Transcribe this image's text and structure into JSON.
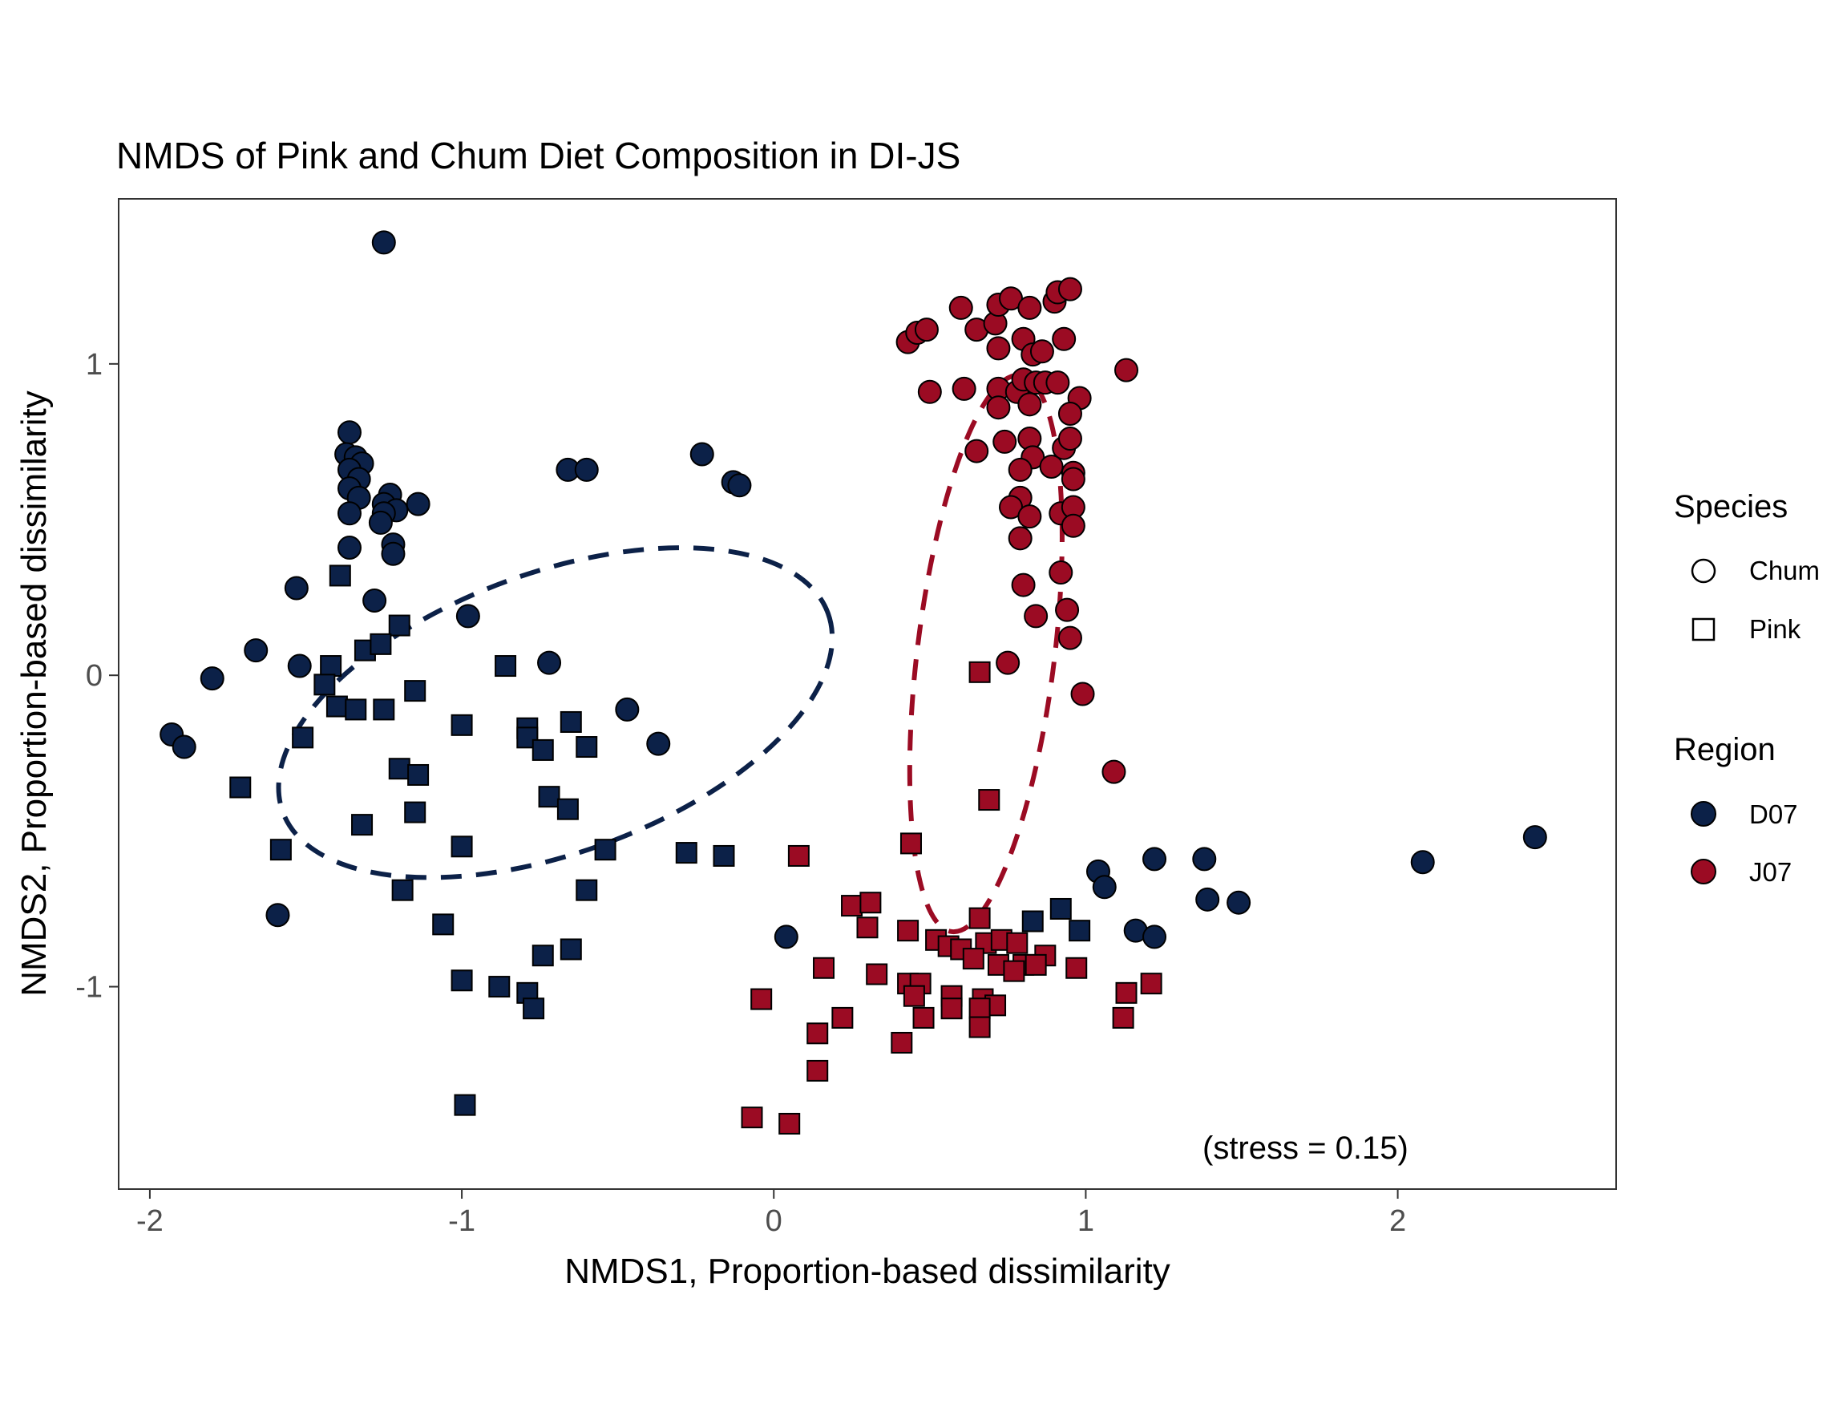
{
  "chart_data": {
    "type": "scatter",
    "title": "NMDS of Pink and Chum Diet Composition in DI-JS",
    "xlabel": "NMDS1, Proportion-based dissimilarity",
    "ylabel": "NMDS2, Proportion-based dissimilarity",
    "xlim": [
      -2.1,
      2.7
    ],
    "ylim": [
      -1.65,
      1.53
    ],
    "x_ticks": [
      -2,
      -1,
      0,
      1,
      2
    ],
    "x_tick_labels": [
      "-2",
      "-1",
      "0",
      "1",
      "2"
    ],
    "y_ticks": [
      -1,
      0,
      1
    ],
    "y_tick_labels": [
      "-1",
      "0",
      "1"
    ],
    "grid": false,
    "annotation": "(stress = 0.15)",
    "legend": {
      "placement": "right",
      "species_title": "Species",
      "species": [
        {
          "label": "Chum",
          "shape": "circle"
        },
        {
          "label": "Pink",
          "shape": "square"
        }
      ],
      "region_title": "Region",
      "regions": [
        {
          "label": "D07",
          "color": "#0c2148"
        },
        {
          "label": "J07",
          "color": "#9b0b23"
        }
      ]
    },
    "ellipses": [
      {
        "group": "D07",
        "color": "#0c2148",
        "center": [
          -0.7,
          -0.12
        ],
        "rx": 0.93,
        "ry": 0.45,
        "rotation_deg": -20
      },
      {
        "group": "J07",
        "color": "#9b0b23",
        "center": [
          0.68,
          0.07
        ],
        "rx": 0.22,
        "ry": 0.9,
        "rotation_deg": 7
      }
    ],
    "series": [
      {
        "species": "Chum",
        "region": "D07",
        "points": [
          [
            -1.25,
            1.39
          ],
          [
            -1.36,
            0.78
          ],
          [
            -1.37,
            0.71
          ],
          [
            -1.34,
            0.7
          ],
          [
            -1.32,
            0.68
          ],
          [
            -1.36,
            0.66
          ],
          [
            -1.33,
            0.63
          ],
          [
            -1.36,
            0.6
          ],
          [
            -1.33,
            0.57
          ],
          [
            -1.23,
            0.58
          ],
          [
            -1.25,
            0.55
          ],
          [
            -1.21,
            0.53
          ],
          [
            -1.25,
            0.52
          ],
          [
            -1.26,
            0.49
          ],
          [
            -1.36,
            0.52
          ],
          [
            -1.14,
            0.55
          ],
          [
            -1.22,
            0.42
          ],
          [
            -1.22,
            0.39
          ],
          [
            -1.36,
            0.41
          ],
          [
            -1.53,
            0.28
          ],
          [
            -1.28,
            0.24
          ],
          [
            -0.98,
            0.19
          ],
          [
            -1.66,
            0.08
          ],
          [
            -1.52,
            0.03
          ],
          [
            -0.72,
            0.04
          ],
          [
            -1.8,
            -0.01
          ],
          [
            -0.47,
            -0.11
          ],
          [
            -0.37,
            -0.22
          ],
          [
            -1.93,
            -0.19
          ],
          [
            -1.89,
            -0.23
          ],
          [
            -1.59,
            -0.77
          ],
          [
            -0.66,
            0.66
          ],
          [
            -0.6,
            0.66
          ],
          [
            -0.23,
            0.71
          ],
          [
            -0.13,
            0.62
          ],
          [
            -0.11,
            0.61
          ],
          [
            0.04,
            -0.84
          ],
          [
            1.04,
            -0.63
          ],
          [
            1.06,
            -0.68
          ],
          [
            1.16,
            -0.82
          ],
          [
            1.22,
            -0.84
          ],
          [
            1.22,
            -0.59
          ],
          [
            1.38,
            -0.59
          ],
          [
            1.39,
            -0.72
          ],
          [
            1.49,
            -0.73
          ],
          [
            2.08,
            -0.6
          ],
          [
            2.44,
            -0.52
          ]
        ]
      },
      {
        "species": "Pink",
        "region": "D07",
        "points": [
          [
            -1.39,
            0.32
          ],
          [
            -1.2,
            0.16
          ],
          [
            -1.31,
            0.08
          ],
          [
            -1.26,
            0.1
          ],
          [
            -1.42,
            0.03
          ],
          [
            -0.86,
            0.03
          ],
          [
            -1.44,
            -0.03
          ],
          [
            -1.15,
            -0.05
          ],
          [
            -1.4,
            -0.1
          ],
          [
            -1.34,
            -0.11
          ],
          [
            -1.25,
            -0.11
          ],
          [
            -1.0,
            -0.16
          ],
          [
            -0.79,
            -0.17
          ],
          [
            -0.79,
            -0.2
          ],
          [
            -0.65,
            -0.15
          ],
          [
            -0.74,
            -0.24
          ],
          [
            -0.6,
            -0.23
          ],
          [
            -1.51,
            -0.2
          ],
          [
            -1.71,
            -0.36
          ],
          [
            -1.2,
            -0.3
          ],
          [
            -1.14,
            -0.32
          ],
          [
            -1.15,
            -0.44
          ],
          [
            -0.72,
            -0.39
          ],
          [
            -0.66,
            -0.43
          ],
          [
            -1.32,
            -0.48
          ],
          [
            -1.58,
            -0.56
          ],
          [
            -1.0,
            -0.55
          ],
          [
            -0.54,
            -0.56
          ],
          [
            -0.28,
            -0.57
          ],
          [
            -0.16,
            -0.58
          ],
          [
            -1.19,
            -0.69
          ],
          [
            -0.6,
            -0.69
          ],
          [
            -1.06,
            -0.8
          ],
          [
            -0.74,
            -0.9
          ],
          [
            -0.65,
            -0.88
          ],
          [
            -1.0,
            -0.98
          ],
          [
            -0.88,
            -1.0
          ],
          [
            -0.79,
            -1.02
          ],
          [
            -0.77,
            -1.07
          ],
          [
            -0.99,
            -1.38
          ],
          [
            0.83,
            -0.79
          ],
          [
            0.92,
            -0.75
          ],
          [
            0.98,
            -0.82
          ]
        ]
      },
      {
        "species": "Chum",
        "region": "J07",
        "points": [
          [
            0.6,
            1.18
          ],
          [
            0.65,
            1.11
          ],
          [
            0.71,
            1.13
          ],
          [
            0.72,
            1.19
          ],
          [
            0.76,
            1.21
          ],
          [
            0.82,
            1.18
          ],
          [
            0.9,
            1.2
          ],
          [
            0.91,
            1.23
          ],
          [
            0.95,
            1.24
          ],
          [
            0.43,
            1.07
          ],
          [
            0.46,
            1.1
          ],
          [
            0.49,
            1.11
          ],
          [
            0.72,
            1.05
          ],
          [
            0.8,
            1.08
          ],
          [
            0.83,
            1.03
          ],
          [
            0.86,
            1.04
          ],
          [
            0.93,
            1.08
          ],
          [
            0.5,
            0.91
          ],
          [
            0.61,
            0.92
          ],
          [
            0.72,
            0.92
          ],
          [
            0.78,
            0.91
          ],
          [
            0.8,
            0.95
          ],
          [
            0.84,
            0.94
          ],
          [
            0.87,
            0.94
          ],
          [
            0.91,
            0.94
          ],
          [
            0.98,
            0.89
          ],
          [
            1.13,
            0.98
          ],
          [
            0.72,
            0.86
          ],
          [
            0.82,
            0.87
          ],
          [
            0.95,
            0.84
          ],
          [
            0.82,
            0.76
          ],
          [
            0.93,
            0.73
          ],
          [
            0.95,
            0.76
          ],
          [
            0.65,
            0.72
          ],
          [
            0.74,
            0.75
          ],
          [
            0.83,
            0.7
          ],
          [
            0.89,
            0.67
          ],
          [
            0.96,
            0.65
          ],
          [
            0.79,
            0.66
          ],
          [
            0.96,
            0.63
          ],
          [
            0.79,
            0.57
          ],
          [
            0.76,
            0.54
          ],
          [
            0.82,
            0.51
          ],
          [
            0.92,
            0.52
          ],
          [
            0.96,
            0.54
          ],
          [
            0.96,
            0.48
          ],
          [
            0.79,
            0.44
          ],
          [
            0.92,
            0.33
          ],
          [
            0.8,
            0.29
          ],
          [
            0.84,
            0.19
          ],
          [
            0.94,
            0.21
          ],
          [
            0.95,
            0.12
          ],
          [
            0.75,
            0.04
          ],
          [
            0.99,
            -0.06
          ],
          [
            1.09,
            -0.31
          ]
        ]
      },
      {
        "species": "Pink",
        "region": "J07",
        "points": [
          [
            0.66,
            0.01
          ],
          [
            0.69,
            -0.4
          ],
          [
            0.44,
            -0.54
          ],
          [
            0.08,
            -0.58
          ],
          [
            0.25,
            -0.74
          ],
          [
            0.31,
            -0.73
          ],
          [
            0.3,
            -0.81
          ],
          [
            0.43,
            -0.82
          ],
          [
            0.52,
            -0.85
          ],
          [
            0.56,
            -0.87
          ],
          [
            0.6,
            -0.88
          ],
          [
            0.66,
            -0.78
          ],
          [
            0.68,
            -0.86
          ],
          [
            0.73,
            -0.85
          ],
          [
            0.78,
            -0.86
          ],
          [
            0.8,
            -0.93
          ],
          [
            0.87,
            -0.9
          ],
          [
            0.64,
            -0.91
          ],
          [
            0.72,
            -0.93
          ],
          [
            0.77,
            -0.95
          ],
          [
            0.84,
            -0.93
          ],
          [
            0.97,
            -0.94
          ],
          [
            0.16,
            -0.94
          ],
          [
            0.33,
            -0.96
          ],
          [
            0.43,
            -0.99
          ],
          [
            0.47,
            -0.99
          ],
          [
            0.45,
            -1.03
          ],
          [
            0.57,
            -1.03
          ],
          [
            0.67,
            -1.04
          ],
          [
            0.71,
            -1.06
          ],
          [
            -0.04,
            -1.04
          ],
          [
            0.57,
            -1.07
          ],
          [
            0.66,
            -1.07
          ],
          [
            0.48,
            -1.1
          ],
          [
            0.22,
            -1.1
          ],
          [
            0.66,
            -1.13
          ],
          [
            0.14,
            -1.15
          ],
          [
            0.41,
            -1.18
          ],
          [
            1.13,
            -1.02
          ],
          [
            1.21,
            -0.99
          ],
          [
            1.12,
            -1.1
          ],
          [
            0.14,
            -1.27
          ],
          [
            -0.07,
            -1.42
          ],
          [
            0.05,
            -1.44
          ]
        ]
      }
    ]
  }
}
